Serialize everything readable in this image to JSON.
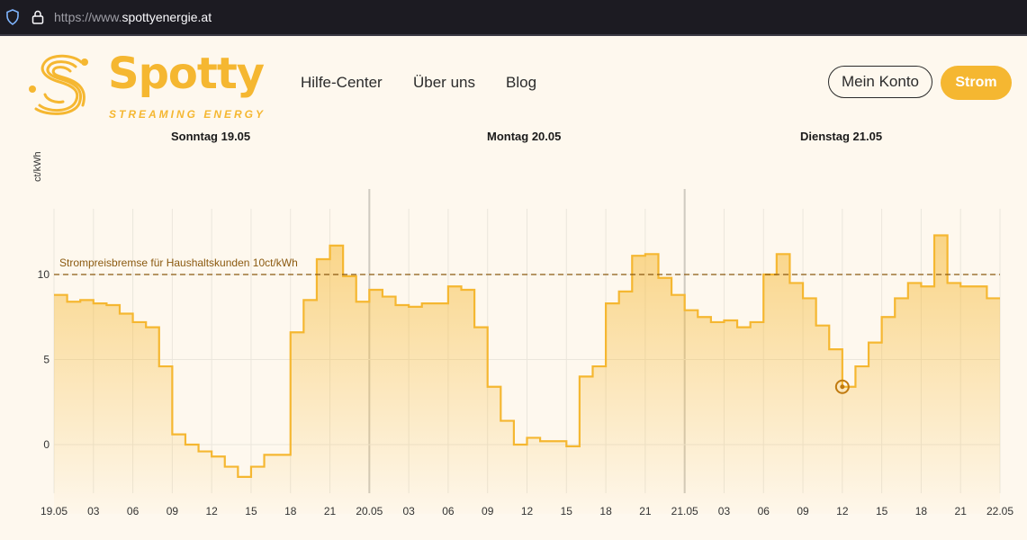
{
  "browser": {
    "url_prefix": "https://www.",
    "url_domain": "spottyenergie.at"
  },
  "brand": {
    "name": "Spotty",
    "tagline": "STREAMING ENERGY",
    "color": "#f5b731"
  },
  "nav": [
    {
      "label": "Hilfe-Center"
    },
    {
      "label": "Über uns"
    },
    {
      "label": "Blog"
    }
  ],
  "buttons": {
    "account": "Mein Konto",
    "strom": "Strom"
  },
  "days": [
    "Sonntag 19.05",
    "Montag 20.05",
    "Dienstag 21.05"
  ],
  "chart_data": {
    "type": "step-area",
    "ylabel": "ct/kWh",
    "ylim": [
      -3,
      14
    ],
    "yticks": [
      0,
      5,
      10
    ],
    "xlim_hours": [
      0,
      72
    ],
    "x_tick_labels": [
      "19.05",
      "03",
      "06",
      "09",
      "12",
      "15",
      "18",
      "21",
      "20.05",
      "03",
      "06",
      "09",
      "12",
      "15",
      "18",
      "21",
      "21.05",
      "03",
      "06",
      "09",
      "12",
      "15",
      "18",
      "21",
      "22.05"
    ],
    "reference_line": {
      "value": 10,
      "label": "Strompreisbremse für Haushaltskunden 10ct/kWh"
    },
    "hourly_values": [
      8.8,
      8.4,
      8.5,
      8.3,
      8.2,
      7.7,
      7.2,
      6.9,
      4.6,
      0.6,
      0.0,
      -0.4,
      -0.7,
      -1.3,
      -1.9,
      -1.3,
      -0.6,
      -0.6,
      6.6,
      8.5,
      10.9,
      11.7,
      9.9,
      8.4,
      9.1,
      8.7,
      8.2,
      8.1,
      8.3,
      8.3,
      9.3,
      9.1,
      6.9,
      3.4,
      1.4,
      0.0,
      0.4,
      0.2,
      0.2,
      -0.1,
      4.0,
      4.6,
      8.3,
      9.0,
      11.1,
      11.2,
      9.8,
      8.8,
      7.9,
      7.5,
      7.2,
      7.3,
      6.9,
      7.2,
      10.0,
      11.2,
      9.5,
      8.6,
      7.0,
      5.6,
      3.4,
      4.6,
      6.0,
      7.5,
      8.6,
      9.5,
      9.3,
      12.3,
      9.5,
      9.3,
      9.3,
      8.6
    ],
    "marker": {
      "hour": 60,
      "value": 3.4
    },
    "colors": {
      "line": "#f5b731",
      "reference": "#8b5a10",
      "marker": "#c07a10"
    }
  }
}
